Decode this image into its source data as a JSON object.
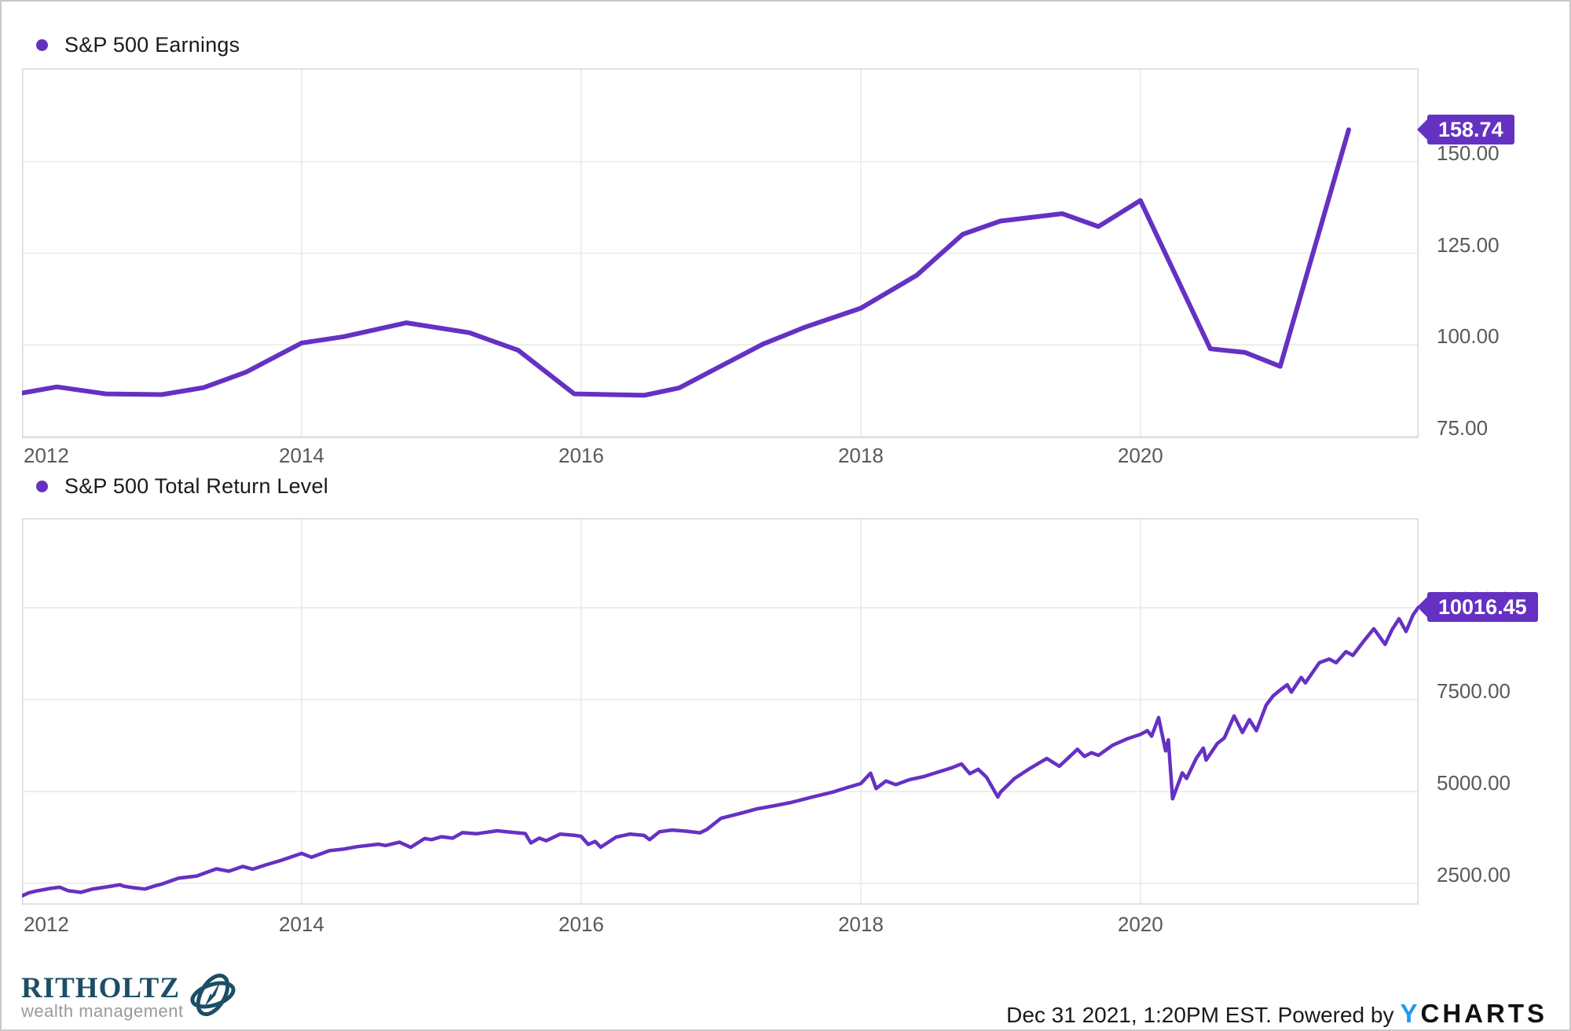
{
  "colors": {
    "line": "#6531c3",
    "tag_bg": "#6531c3",
    "tag_text": "#ffffff",
    "grid": "#e9e9e9",
    "plot_border": "#d9d9d9",
    "axis_text": "#595959",
    "legend_text": "#1b1b1b",
    "brand_navy": "#1c4e66",
    "brand_gray": "#9a9a9a",
    "ycharts_blue": "#1e9bf0",
    "ycharts_black": "#111111"
  },
  "footer": {
    "brand_title": "RITHOLTZ",
    "brand_subtitle": "wealth management",
    "timestamp": "Dec 31 2021, 1:20PM EST. Powered by",
    "ycharts_y": "Y",
    "ycharts_rest": "CHARTS"
  },
  "chart_data": [
    {
      "type": "line",
      "title": "S&P 500 Earnings",
      "legend": "S&P 500 Earnings",
      "tag_label": "158.74",
      "last_value": 158.74,
      "x_min": 2012,
      "x_max": 2021.99,
      "y_min": 74.5,
      "y_max": 175.5,
      "grid": true,
      "legend_position": "top-left",
      "x_ticks": [
        {
          "v": 2012,
          "label": "2012"
        },
        {
          "v": 2014,
          "label": "2014"
        },
        {
          "v": 2016,
          "label": "2016"
        },
        {
          "v": 2018,
          "label": "2018"
        },
        {
          "v": 2020,
          "label": "2020"
        }
      ],
      "y_ticks": [
        {
          "v": 150,
          "label": "150.00"
        },
        {
          "v": 125,
          "label": "125.00"
        },
        {
          "v": 100,
          "label": "100.00"
        },
        {
          "v": 75,
          "label": "75.00"
        }
      ],
      "series": [
        [
          2012.0,
          86.8
        ],
        [
          2012.25,
          88.5
        ],
        [
          2012.6,
          86.6
        ],
        [
          2013.0,
          86.4
        ],
        [
          2013.3,
          88.3
        ],
        [
          2013.6,
          92.5
        ],
        [
          2014.0,
          100.5
        ],
        [
          2014.3,
          102.2
        ],
        [
          2014.75,
          106.0
        ],
        [
          2015.2,
          103.3
        ],
        [
          2015.55,
          98.5
        ],
        [
          2015.95,
          86.6
        ],
        [
          2016.45,
          86.2
        ],
        [
          2016.7,
          88.2
        ],
        [
          2017.0,
          94.2
        ],
        [
          2017.3,
          100.2
        ],
        [
          2017.6,
          104.8
        ],
        [
          2018.0,
          110.0
        ],
        [
          2018.4,
          119.0
        ],
        [
          2018.73,
          130.2
        ],
        [
          2019.0,
          133.8
        ],
        [
          2019.44,
          135.8
        ],
        [
          2019.7,
          132.3
        ],
        [
          2020.0,
          139.4
        ],
        [
          2020.5,
          98.9
        ],
        [
          2020.75,
          97.9
        ],
        [
          2021.0,
          94.1
        ],
        [
          2021.49,
          158.74
        ]
      ]
    },
    {
      "type": "line",
      "title": "S&P 500 Total Return Level",
      "legend": "S&P 500 Total Return Level",
      "tag_label": "10016.45",
      "last_value": 10016.45,
      "x_min": 2012,
      "x_max": 2021.99,
      "y_min": 1922,
      "y_max": 12436,
      "grid": true,
      "legend_position": "top-left",
      "x_ticks": [
        {
          "v": 2012,
          "label": "2012"
        },
        {
          "v": 2014,
          "label": "2014"
        },
        {
          "v": 2016,
          "label": "2016"
        },
        {
          "v": 2018,
          "label": "2018"
        },
        {
          "v": 2020,
          "label": "2020"
        }
      ],
      "y_ticks": [
        {
          "v": 10000,
          "label": "10000.00"
        },
        {
          "v": 7500,
          "label": "7500.00"
        },
        {
          "v": 5000,
          "label": "5000.00"
        },
        {
          "v": 2500,
          "label": "2500.00"
        }
      ],
      "series": [
        [
          2012.0,
          2160
        ],
        [
          2012.05,
          2245
        ],
        [
          2012.1,
          2290
        ],
        [
          2012.2,
          2360
        ],
        [
          2012.27,
          2395
        ],
        [
          2012.33,
          2300
        ],
        [
          2012.42,
          2255
        ],
        [
          2012.5,
          2340
        ],
        [
          2012.6,
          2400
        ],
        [
          2012.7,
          2460
        ],
        [
          2012.73,
          2420
        ],
        [
          2012.8,
          2380
        ],
        [
          2012.88,
          2345
        ],
        [
          2012.95,
          2430
        ],
        [
          2013.0,
          2480
        ],
        [
          2013.12,
          2640
        ],
        [
          2013.25,
          2700
        ],
        [
          2013.39,
          2895
        ],
        [
          2013.48,
          2830
        ],
        [
          2013.58,
          2960
        ],
        [
          2013.65,
          2885
        ],
        [
          2013.75,
          3010
        ],
        [
          2013.85,
          3120
        ],
        [
          2014.0,
          3315
        ],
        [
          2014.07,
          3210
        ],
        [
          2014.2,
          3390
        ],
        [
          2014.3,
          3430
        ],
        [
          2014.4,
          3500
        ],
        [
          2014.55,
          3565
        ],
        [
          2014.6,
          3530
        ],
        [
          2014.7,
          3620
        ],
        [
          2014.78,
          3480
        ],
        [
          2014.88,
          3720
        ],
        [
          2014.93,
          3690
        ],
        [
          2015.0,
          3769
        ],
        [
          2015.08,
          3730
        ],
        [
          2015.15,
          3880
        ],
        [
          2015.25,
          3850
        ],
        [
          2015.4,
          3930
        ],
        [
          2015.5,
          3890
        ],
        [
          2015.6,
          3855
        ],
        [
          2015.64,
          3600
        ],
        [
          2015.7,
          3730
        ],
        [
          2015.75,
          3660
        ],
        [
          2015.85,
          3840
        ],
        [
          2015.95,
          3810
        ],
        [
          2016.0,
          3780
        ],
        [
          2016.05,
          3560
        ],
        [
          2016.1,
          3640
        ],
        [
          2016.14,
          3485
        ],
        [
          2016.25,
          3760
        ],
        [
          2016.35,
          3840
        ],
        [
          2016.45,
          3805
        ],
        [
          2016.49,
          3690
        ],
        [
          2016.56,
          3905
        ],
        [
          2016.65,
          3950
        ],
        [
          2016.75,
          3920
        ],
        [
          2016.85,
          3875
        ],
        [
          2016.9,
          3970
        ],
        [
          2017.0,
          4270
        ],
        [
          2017.15,
          4415
        ],
        [
          2017.25,
          4520
        ],
        [
          2017.4,
          4625
        ],
        [
          2017.5,
          4700
        ],
        [
          2017.65,
          4845
        ],
        [
          2017.8,
          4985
        ],
        [
          2017.9,
          5105
        ],
        [
          2018.0,
          5215
        ],
        [
          2018.07,
          5500
        ],
        [
          2018.11,
          5080
        ],
        [
          2018.18,
          5285
        ],
        [
          2018.25,
          5185
        ],
        [
          2018.35,
          5325
        ],
        [
          2018.45,
          5405
        ],
        [
          2018.55,
          5525
        ],
        [
          2018.65,
          5645
        ],
        [
          2018.72,
          5750
        ],
        [
          2018.78,
          5485
        ],
        [
          2018.84,
          5605
        ],
        [
          2018.9,
          5385
        ],
        [
          2018.98,
          4850
        ],
        [
          2019.0,
          4985
        ],
        [
          2019.1,
          5355
        ],
        [
          2019.2,
          5605
        ],
        [
          2019.33,
          5900
        ],
        [
          2019.42,
          5685
        ],
        [
          2019.55,
          6150
        ],
        [
          2019.6,
          5955
        ],
        [
          2019.65,
          6055
        ],
        [
          2019.7,
          5985
        ],
        [
          2019.8,
          6255
        ],
        [
          2019.9,
          6425
        ],
        [
          2020.0,
          6553
        ],
        [
          2020.05,
          6655
        ],
        [
          2020.08,
          6505
        ],
        [
          2020.13,
          7010
        ],
        [
          2020.18,
          6105
        ],
        [
          2020.2,
          6405
        ],
        [
          2020.23,
          4800
        ],
        [
          2020.3,
          5505
        ],
        [
          2020.33,
          5355
        ],
        [
          2020.4,
          5905
        ],
        [
          2020.45,
          6180
        ],
        [
          2020.47,
          5855
        ],
        [
          2020.55,
          6305
        ],
        [
          2020.6,
          6455
        ],
        [
          2020.67,
          7055
        ],
        [
          2020.73,
          6605
        ],
        [
          2020.78,
          6955
        ],
        [
          2020.83,
          6655
        ],
        [
          2020.9,
          7355
        ],
        [
          2020.95,
          7605
        ],
        [
          2021.0,
          7760
        ],
        [
          2021.05,
          7905
        ],
        [
          2021.08,
          7705
        ],
        [
          2021.15,
          8105
        ],
        [
          2021.18,
          7955
        ],
        [
          2021.28,
          8505
        ],
        [
          2021.35,
          8605
        ],
        [
          2021.4,
          8505
        ],
        [
          2021.47,
          8805
        ],
        [
          2021.52,
          8705
        ],
        [
          2021.6,
          9105
        ],
        [
          2021.67,
          9430
        ],
        [
          2021.75,
          9005
        ],
        [
          2021.8,
          9405
        ],
        [
          2021.85,
          9700
        ],
        [
          2021.9,
          9355
        ],
        [
          2021.95,
          9805
        ],
        [
          2021.99,
          10016.45
        ]
      ]
    }
  ]
}
